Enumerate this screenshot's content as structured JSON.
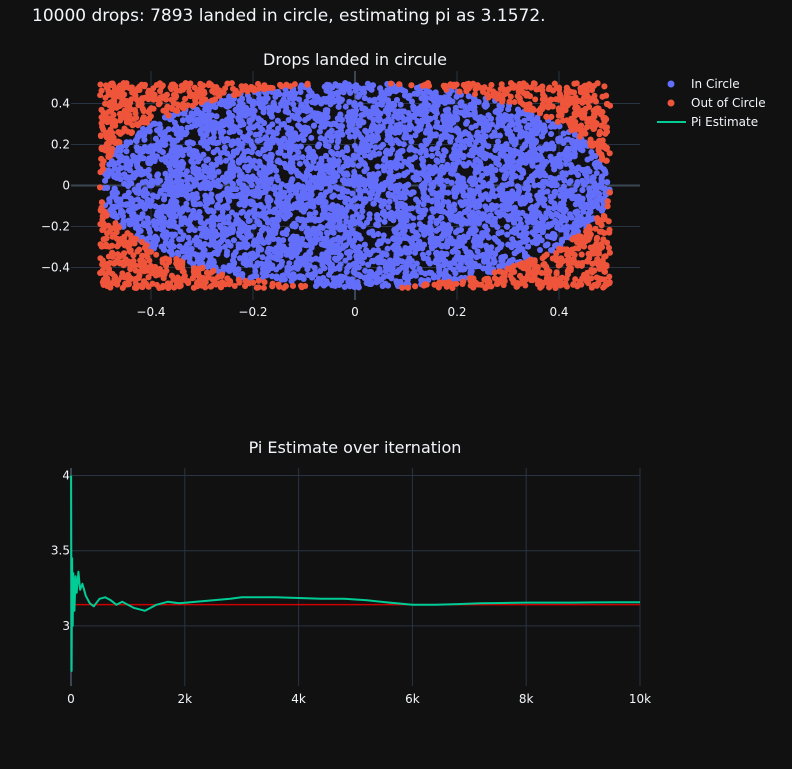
{
  "title": "10000 drops: 7893 landed in circle, estimating pi as 3.1572.",
  "colors": {
    "background": "#111111",
    "grid": "#283442",
    "zeroline": "#3b4654",
    "text": "#f2f5fa",
    "in_circle": "#636efa",
    "out_circle": "#ef553b",
    "pi_estimate": "#00cc96",
    "pi_reference": "#cc0000"
  },
  "legend": {
    "placement": "top-right",
    "items": [
      {
        "label": "In Circle",
        "symbol": "marker",
        "color_key": "in_circle"
      },
      {
        "label": "Out of Circle",
        "symbol": "marker",
        "color_key": "out_circle"
      },
      {
        "label": "Pi Estimate",
        "symbol": "line",
        "color_key": "pi_estimate"
      }
    ]
  },
  "chart_data": [
    {
      "type": "scatter",
      "title": "Drops landed in circule",
      "xlim": [
        -0.5,
        0.5
      ],
      "ylim": [
        -0.5,
        0.5
      ],
      "xticks": [
        -0.4,
        -0.2,
        0,
        0.2,
        0.4
      ],
      "xtick_labels": [
        "−0.4",
        "−0.2",
        "0",
        "0.2",
        "0.4"
      ],
      "yticks": [
        -0.4,
        -0.2,
        0,
        0.2,
        0.4
      ],
      "ytick_labels": [
        "−0.4",
        "−0.2",
        "0",
        "0.2",
        "0.4"
      ],
      "grid": true,
      "drops": 10000,
      "in_circle_count": 7893,
      "circle_radius": 0.5,
      "series": [
        {
          "name": "In Circle",
          "color_key": "in_circle"
        },
        {
          "name": "Out of Circle",
          "color_key": "out_circle"
        }
      ]
    },
    {
      "type": "line",
      "title": "Pi Estimate over iternation",
      "xlim": [
        0,
        10000
      ],
      "ylim": [
        2.6,
        4.05
      ],
      "xticks": [
        0,
        2000,
        4000,
        6000,
        8000,
        10000
      ],
      "xtick_labels": [
        "0",
        "2k",
        "4k",
        "6k",
        "8k",
        "10k"
      ],
      "yticks": [
        3,
        3.5,
        4
      ],
      "ytick_labels": [
        "3",
        "3.5",
        "4"
      ],
      "grid": true,
      "reference_value": 3.14159,
      "series": [
        {
          "name": "Pi Estimate",
          "color_key": "pi_estimate",
          "x": [
            1,
            10,
            20,
            30,
            40,
            60,
            80,
            100,
            130,
            160,
            200,
            260,
            330,
            400,
            500,
            600,
            700,
            800,
            900,
            1000,
            1100,
            1200,
            1300,
            1400,
            1500,
            1700,
            1900,
            2200,
            2500,
            2800,
            3000,
            3300,
            3600,
            4000,
            4400,
            4800,
            5200,
            5600,
            6000,
            6400,
            6800,
            7200,
            7600,
            8000,
            8400,
            8800,
            9200,
            9600,
            10000
          ],
          "y": [
            4.0,
            2.7,
            3.45,
            3.0,
            3.35,
            3.1,
            3.33,
            3.22,
            3.36,
            3.24,
            3.28,
            3.2,
            3.15,
            3.13,
            3.18,
            3.19,
            3.17,
            3.14,
            3.16,
            3.14,
            3.12,
            3.11,
            3.1,
            3.12,
            3.14,
            3.16,
            3.15,
            3.16,
            3.17,
            3.18,
            3.19,
            3.19,
            3.19,
            3.185,
            3.18,
            3.18,
            3.17,
            3.155,
            3.14,
            3.14,
            3.145,
            3.15,
            3.152,
            3.155,
            3.155,
            3.155,
            3.156,
            3.157,
            3.1572
          ]
        }
      ]
    }
  ]
}
